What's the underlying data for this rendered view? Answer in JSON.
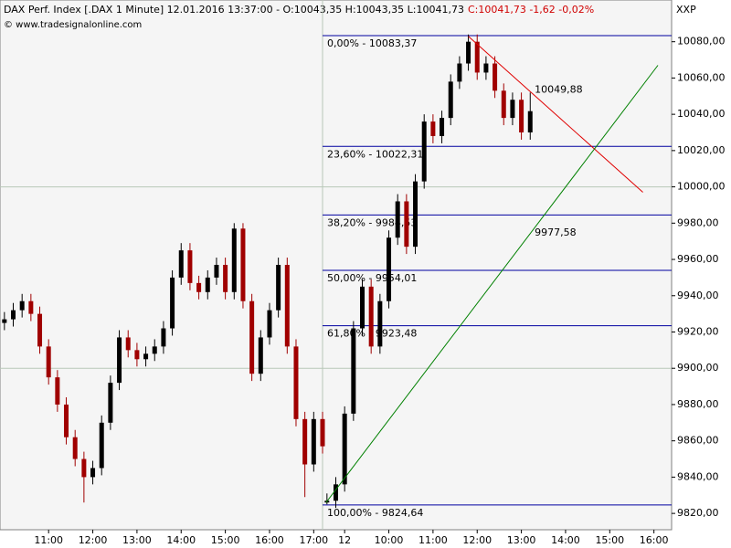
{
  "chart_data": {
    "type": "candlestick",
    "header": "DAX Perf. Index [.DAX  1 Minute]  12.01.2016 13:37:00 - O:10043,35 H:10043,35 L:10041,73",
    "header_change": "C:10041,73  -1,62  -0,02%",
    "copyright": "© www.tradesignalonline.com",
    "axis_label": "XXP",
    "xlim": [
      -0.1,
      15.1
    ],
    "xticks": [
      {
        "value": 1,
        "label": "11:00"
      },
      {
        "value": 2,
        "label": "12:00"
      },
      {
        "value": 3,
        "label": "13:00"
      },
      {
        "value": 4,
        "label": "14:00"
      },
      {
        "value": 5,
        "label": "15:00"
      },
      {
        "value": 6,
        "label": "16:00"
      },
      {
        "value": 7,
        "label": "17:00"
      },
      {
        "value": 7.7,
        "label": "12"
      },
      {
        "value": 8.7,
        "label": "10:00"
      },
      {
        "value": 9.7,
        "label": "11:00"
      },
      {
        "value": 10.7,
        "label": "12:00"
      },
      {
        "value": 11.7,
        "label": "13:00"
      },
      {
        "value": 12.7,
        "label": "14:00"
      },
      {
        "value": 13.7,
        "label": "15:00"
      },
      {
        "value": 14.7,
        "label": "16:00"
      }
    ],
    "ylim": [
      9811,
      10103
    ],
    "yticks": [
      {
        "value": 9820,
        "label": "9820,00"
      },
      {
        "value": 9840,
        "label": "9840,00"
      },
      {
        "value": 9860,
        "label": "9860,00"
      },
      {
        "value": 9880,
        "label": "9880,00"
      },
      {
        "value": 9900,
        "label": "9900,00"
      },
      {
        "value": 9920,
        "label": "9920,00"
      },
      {
        "value": 9940,
        "label": "9940,00"
      },
      {
        "value": 9960,
        "label": "9960,00"
      },
      {
        "value": 9980,
        "label": "9980,00"
      },
      {
        "value": 10000,
        "label": "10000,00"
      },
      {
        "value": 10020,
        "label": "10020,00"
      },
      {
        "value": 10040,
        "label": "10040,00"
      },
      {
        "value": 10060,
        "label": "10060,00"
      },
      {
        "value": 10080,
        "label": "10080,00"
      }
    ],
    "gridlines": [
      9900,
      10000
    ],
    "day_break": 7.2,
    "up_color": "#000000",
    "down_color": "#a00000",
    "x": [
      0,
      0.2,
      0.4,
      0.6,
      0.8,
      1,
      1.2,
      1.4,
      1.6,
      1.8,
      2,
      2.2,
      2.4,
      2.6,
      2.8,
      3,
      3.2,
      3.4,
      3.6,
      3.8,
      4,
      4.2,
      4.4,
      4.6,
      4.8,
      5,
      5.2,
      5.4,
      5.6,
      5.8,
      6,
      6.2,
      6.4,
      6.6,
      6.8,
      7,
      7.2,
      7.3,
      7.5,
      7.7,
      7.9,
      8.1,
      8.3,
      8.5,
      8.7,
      8.9,
      9.1,
      9.3,
      9.5,
      9.7,
      9.9,
      10.1,
      10.3,
      10.5,
      10.7,
      10.9,
      11.1,
      11.3,
      11.5,
      11.7,
      11.9
    ],
    "open": [
      9925,
      9927,
      9932,
      9937,
      9930,
      9912,
      9895,
      9880,
      9862,
      9850,
      9840,
      9845,
      9870,
      9892,
      9917,
      9910,
      9905,
      9908,
      9912,
      9922,
      9950,
      9965,
      9947,
      9942,
      9950,
      9957,
      9942,
      9977,
      9937,
      9897,
      9917,
      9932,
      9957,
      9912,
      9872,
      9847,
      9872,
      9826,
      9827,
      9836,
      9875,
      9922,
      9945,
      9912,
      9937,
      9972,
      9992,
      9967,
      10003,
      10036,
      10028,
      10038,
      10058,
      10068,
      10080,
      10063,
      10068,
      10053,
      10038,
      10048,
      10030
    ],
    "high": [
      9931,
      9936,
      9941,
      9941,
      9934,
      9916,
      9899,
      9884,
      9866,
      9854,
      9849,
      9874,
      9896,
      9921,
      9921,
      9914,
      9912,
      9916,
      9926,
      9954,
      9969,
      9969,
      9951,
      9954,
      9961,
      9961,
      9980,
      9980,
      9941,
      9921,
      9936,
      9961,
      9961,
      9916,
      9876,
      9876,
      9876,
      9831,
      9840,
      9879,
      9926,
      9949,
      9949,
      9941,
      9976,
      9996,
      9996,
      10007,
      10040,
      10040,
      10042,
      10062,
      10072,
      10084,
      10084,
      10072,
      10072,
      10057,
      10052,
      10052,
      10052
    ],
    "low": [
      9921,
      9923,
      9928,
      9926,
      9908,
      9891,
      9876,
      9858,
      9846,
      9826,
      9836,
      9841,
      9866,
      9888,
      9906,
      9901,
      9901,
      9904,
      9908,
      9918,
      9946,
      9943,
      9938,
      9938,
      9946,
      9938,
      9938,
      9933,
      9893,
      9893,
      9913,
      9928,
      9908,
      9868,
      9829,
      9843,
      9853,
      9825,
      9823,
      9832,
      9871,
      9918,
      9908,
      9908,
      9933,
      9968,
      9963,
      9963,
      9999,
      10024,
      10024,
      10034,
      10054,
      10064,
      10059,
      10059,
      10049,
      10034,
      10034,
      10026,
      10026
    ],
    "close": [
      9927,
      9932,
      9937,
      9930,
      9912,
      9895,
      9880,
      9862,
      9850,
      9840,
      9845,
      9870,
      9892,
      9917,
      9910,
      9905,
      9908,
      9912,
      9922,
      9950,
      9965,
      9947,
      9942,
      9950,
      9957,
      9942,
      9977,
      9937,
      9897,
      9917,
      9932,
      9957,
      9912,
      9872,
      9847,
      9872,
      9857,
      9827,
      9836,
      9875,
      9922,
      9945,
      9912,
      9937,
      9972,
      9992,
      9967,
      10003,
      10036,
      10028,
      10038,
      10058,
      10068,
      10080,
      10063,
      10068,
      10053,
      10038,
      10048,
      10030,
      10041.73
    ],
    "fibonacci": {
      "color": "#0000a0",
      "x": 7.2,
      "levels": [
        {
          "value": 10083.37,
          "label": "0,00% - 10083,37"
        },
        {
          "value": 10022.31,
          "label": "23,60% - 10022,31"
        },
        {
          "value": 9984.53,
          "label": "38,20% - 9984,53"
        },
        {
          "value": 9954.01,
          "label": "50,00% - 9954,01"
        },
        {
          "value": 9923.48,
          "label": "61,80% - 9923,48"
        },
        {
          "value": 9824.64,
          "label": "100,00% - 9824,64"
        }
      ]
    },
    "trendlines": [
      {
        "color": "#e00000",
        "x": [
          10.5,
          14.45
        ],
        "values": [
          10083,
          9997
        ],
        "label_x": 12.0,
        "label_value": 10049.88,
        "label": "10049,88"
      },
      {
        "color": "#008000",
        "x": [
          7.28,
          14.79
        ],
        "values": [
          9826,
          10067
        ],
        "label_x": 12.0,
        "label_value": 9977.58,
        "label": "9977,58"
      }
    ]
  }
}
